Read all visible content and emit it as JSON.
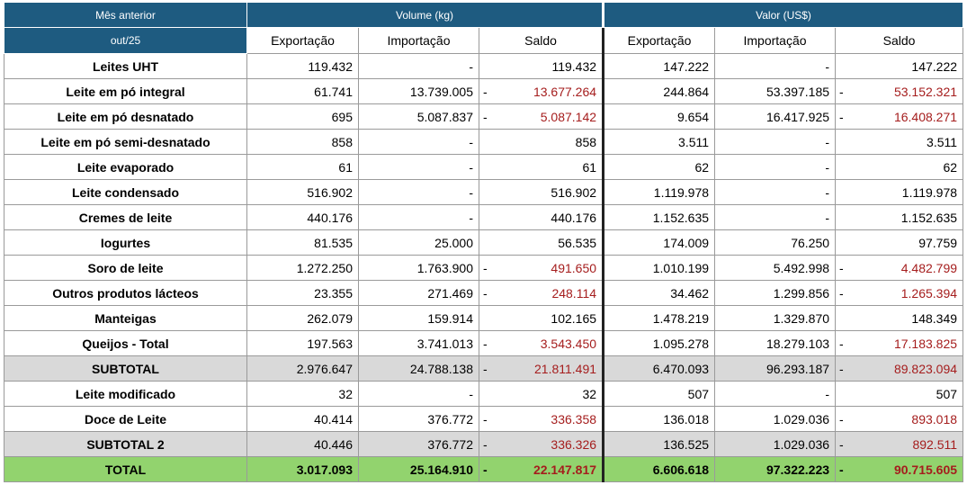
{
  "header": {
    "prev_month_label": "Mês anterior",
    "month": "out/25",
    "volume_group": "Volume (kg)",
    "valor_group": "Valor (US$)",
    "sub_columns": [
      "Exportação",
      "Importação",
      "Saldo",
      "Exportação",
      "Importação",
      "Saldo"
    ]
  },
  "colors": {
    "header_bg": "#1e5b80",
    "negative_text": "#a51d1d",
    "subtotal_bg": "#d9d9d9",
    "total_bg": "#92d36e"
  },
  "rows": [
    {
      "label": "Leites UHT",
      "vol_exp": "119.432",
      "vol_imp": "-",
      "vol_saldo": "119.432",
      "vol_neg": false,
      "val_exp": "147.222",
      "val_imp": "-",
      "val_saldo": "147.222",
      "val_neg": false
    },
    {
      "label": "Leite em pó integral",
      "vol_exp": "61.741",
      "vol_imp": "13.739.005",
      "vol_saldo": "13.677.264",
      "vol_neg": true,
      "val_exp": "244.864",
      "val_imp": "53.397.185",
      "val_saldo": "53.152.321",
      "val_neg": true
    },
    {
      "label": "Leite em pó desnatado",
      "vol_exp": "695",
      "vol_imp": "5.087.837",
      "vol_saldo": "5.087.142",
      "vol_neg": true,
      "val_exp": "9.654",
      "val_imp": "16.417.925",
      "val_saldo": "16.408.271",
      "val_neg": true
    },
    {
      "label": "Leite em pó semi-desnatado",
      "vol_exp": "858",
      "vol_imp": "-",
      "vol_saldo": "858",
      "vol_neg": false,
      "val_exp": "3.511",
      "val_imp": "-",
      "val_saldo": "3.511",
      "val_neg": false
    },
    {
      "label": "Leite evaporado",
      "vol_exp": "61",
      "vol_imp": "-",
      "vol_saldo": "61",
      "vol_neg": false,
      "val_exp": "62",
      "val_imp": "-",
      "val_saldo": "62",
      "val_neg": false
    },
    {
      "label": "Leite condensado",
      "vol_exp": "516.902",
      "vol_imp": "-",
      "vol_saldo": "516.902",
      "vol_neg": false,
      "val_exp": "1.119.978",
      "val_imp": "-",
      "val_saldo": "1.119.978",
      "val_neg": false
    },
    {
      "label": "Cremes de leite",
      "vol_exp": "440.176",
      "vol_imp": "-",
      "vol_saldo": "440.176",
      "vol_neg": false,
      "val_exp": "1.152.635",
      "val_imp": "-",
      "val_saldo": "1.152.635",
      "val_neg": false
    },
    {
      "label": "Iogurtes",
      "vol_exp": "81.535",
      "vol_imp": "25.000",
      "vol_saldo": "56.535",
      "vol_neg": false,
      "val_exp": "174.009",
      "val_imp": "76.250",
      "val_saldo": "97.759",
      "val_neg": false
    },
    {
      "label": "Soro de leite",
      "vol_exp": "1.272.250",
      "vol_imp": "1.763.900",
      "vol_saldo": "491.650",
      "vol_neg": true,
      "val_exp": "1.010.199",
      "val_imp": "5.492.998",
      "val_saldo": "4.482.799",
      "val_neg": true
    },
    {
      "label": "Outros produtos lácteos",
      "vol_exp": "23.355",
      "vol_imp": "271.469",
      "vol_saldo": "248.114",
      "vol_neg": true,
      "val_exp": "34.462",
      "val_imp": "1.299.856",
      "val_saldo": "1.265.394",
      "val_neg": true
    },
    {
      "label": "Manteigas",
      "vol_exp": "262.079",
      "vol_imp": "159.914",
      "vol_saldo": "102.165",
      "vol_neg": false,
      "val_exp": "1.478.219",
      "val_imp": "1.329.870",
      "val_saldo": "148.349",
      "val_neg": false
    },
    {
      "label": "Queijos - Total",
      "vol_exp": "197.563",
      "vol_imp": "3.741.013",
      "vol_saldo": "3.543.450",
      "vol_neg": true,
      "val_exp": "1.095.278",
      "val_imp": "18.279.103",
      "val_saldo": "17.183.825",
      "val_neg": true
    },
    {
      "label": "SUBTOTAL",
      "kind": "sub",
      "vol_exp": "2.976.647",
      "vol_imp": "24.788.138",
      "vol_saldo": "21.811.491",
      "vol_neg": true,
      "val_exp": "6.470.093",
      "val_imp": "96.293.187",
      "val_saldo": "89.823.094",
      "val_neg": true
    },
    {
      "label": "Leite modificado",
      "vol_exp": "32",
      "vol_imp": "-",
      "vol_saldo": "32",
      "vol_neg": false,
      "val_exp": "507",
      "val_imp": "-",
      "val_saldo": "507",
      "val_neg": false
    },
    {
      "label": "Doce de Leite",
      "vol_exp": "40.414",
      "vol_imp": "376.772",
      "vol_saldo": "336.358",
      "vol_neg": true,
      "val_exp": "136.018",
      "val_imp": "1.029.036",
      "val_saldo": "893.018",
      "val_neg": true
    },
    {
      "label": "SUBTOTAL 2",
      "kind": "sub",
      "vol_exp": "40.446",
      "vol_imp": "376.772",
      "vol_saldo": "336.326",
      "vol_neg": true,
      "val_exp": "136.525",
      "val_imp": "1.029.036",
      "val_saldo": "892.511",
      "val_neg": true
    },
    {
      "label": "TOTAL",
      "kind": "total",
      "vol_exp": "3.017.093",
      "vol_imp": "25.164.910",
      "vol_saldo": "22.147.817",
      "vol_neg": true,
      "val_exp": "6.606.618",
      "val_imp": "97.322.223",
      "val_saldo": "90.715.605",
      "val_neg": true
    }
  ]
}
